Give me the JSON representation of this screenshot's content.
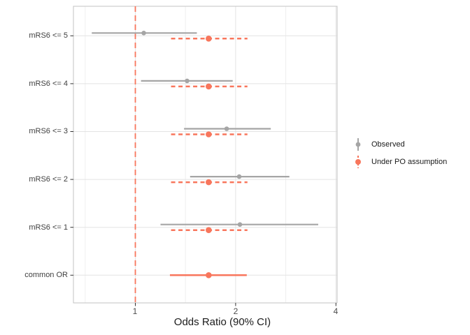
{
  "legend": {
    "items": [
      {
        "label": "Observed",
        "color": "#A5A5A5",
        "line_style": "solid"
      },
      {
        "label": "Under PO assumption",
        "color": "#F8765C",
        "line_style": "dashed"
      }
    ]
  },
  "chart_data": {
    "type": "scatter",
    "subtype": "forest-plot-dot-ci",
    "title": "",
    "xlabel": "Odds Ratio (90% CI)",
    "ylabel": "",
    "x_scale": "log2",
    "xlim": [
      0.65,
      4.03
    ],
    "x_ticks": [
      1,
      2,
      4
    ],
    "x_minor_gridlines": [
      0.707,
      1.414,
      2.828
    ],
    "reference_line": {
      "x": 1,
      "color": "#F8765C",
      "style": "dashed"
    },
    "grid": "on",
    "legend_position": "right",
    "categories": [
      "mRS6 <= 5",
      "mRS6 <= 4",
      "mRS6 <= 3",
      "mRS6 <= 2",
      "mRS6 <= 1",
      "common OR"
    ],
    "series": [
      {
        "name": "Observed",
        "color": "#A5A5A5",
        "line_style": "solid",
        "points": [
          {
            "category": "mRS6 <= 5",
            "estimate": 1.06,
            "ci_low": 0.74,
            "ci_high": 1.53
          },
          {
            "category": "mRS6 <= 4",
            "estimate": 1.43,
            "ci_low": 1.04,
            "ci_high": 1.96
          },
          {
            "category": "mRS6 <= 3",
            "estimate": 1.88,
            "ci_low": 1.4,
            "ci_high": 2.55
          },
          {
            "category": "mRS6 <= 2",
            "estimate": 2.05,
            "ci_low": 1.46,
            "ci_high": 2.9
          },
          {
            "category": "mRS6 <= 1",
            "estimate": 2.06,
            "ci_low": 1.19,
            "ci_high": 3.54
          }
        ]
      },
      {
        "name": "Under PO assumption",
        "color": "#F8765C",
        "line_style": "dashed",
        "points": [
          {
            "category": "mRS6 <= 5",
            "estimate": 1.66,
            "ci_low": 1.28,
            "ci_high": 2.17
          },
          {
            "category": "mRS6 <= 4",
            "estimate": 1.66,
            "ci_low": 1.28,
            "ci_high": 2.17
          },
          {
            "category": "mRS6 <= 3",
            "estimate": 1.66,
            "ci_low": 1.28,
            "ci_high": 2.17
          },
          {
            "category": "mRS6 <= 2",
            "estimate": 1.66,
            "ci_low": 1.28,
            "ci_high": 2.17
          },
          {
            "category": "mRS6 <= 1",
            "estimate": 1.66,
            "ci_low": 1.28,
            "ci_high": 2.17
          },
          {
            "category": "common OR",
            "estimate": 1.66,
            "ci_low": 1.27,
            "ci_high": 2.16,
            "line_style": "solid"
          }
        ]
      }
    ]
  }
}
